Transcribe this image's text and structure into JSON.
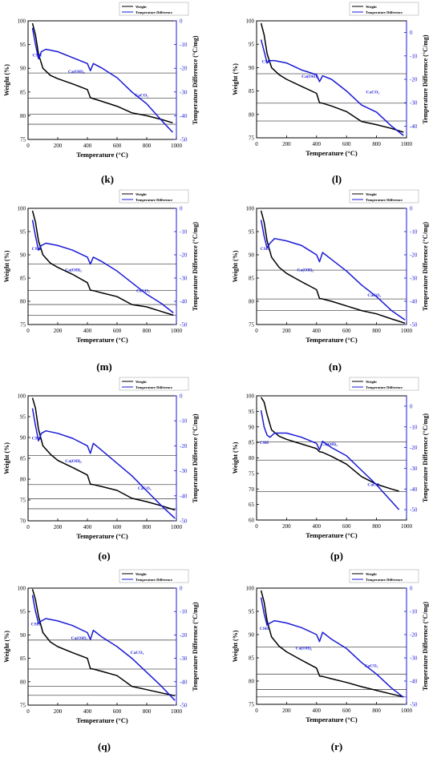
{
  "colors": {
    "weight": "#000000",
    "temp": "#1a1ad6",
    "axis_right": "#1a1ad6",
    "hline": "#555555"
  },
  "legend": {
    "weight": "Weight",
    "temp": "Temperature Difference"
  },
  "axes": {
    "xlabel": "Temperature (°C)",
    "ylabel_left": "Weight (%)",
    "ylabel_right": "Temperature Difference (°C/mg)"
  },
  "annotations": {
    "csh": "CSH",
    "caoh2": "Ca(OH)₂",
    "caco3": "CaCO₃"
  },
  "chart_data": [
    {
      "label": "(k)",
      "type": "line",
      "xlim": [
        0,
        1000
      ],
      "ylim_left": [
        75,
        100
      ],
      "ylim_right": [
        -50,
        0
      ],
      "xticks": [
        0,
        200,
        400,
        600,
        800,
        1000
      ],
      "yticks_left": [
        75,
        80,
        85,
        90,
        95,
        100
      ],
      "yticks_right": [
        0,
        -10,
        -20,
        -30,
        -40,
        -50
      ],
      "hlines": [
        89,
        83.7,
        80.3,
        78.2
      ],
      "series": [
        {
          "name": "Weight",
          "axis": "left",
          "x": [
            30,
            50,
            70,
            100,
            150,
            200,
            300,
            400,
            420,
            440,
            500,
            600,
            700,
            800,
            900,
            975
          ],
          "y": [
            99.5,
            97,
            93,
            90,
            88.5,
            87.8,
            86.7,
            85.5,
            83.8,
            83.6,
            83,
            82,
            80.6,
            80,
            79.2,
            78.5
          ]
        },
        {
          "name": "Temperature Difference",
          "axis": "right",
          "x": [
            30,
            50,
            70,
            90,
            120,
            200,
            300,
            400,
            420,
            440,
            500,
            600,
            700,
            800,
            900,
            975
          ],
          "y": [
            -3,
            -10,
            -16,
            -13,
            -12,
            -13,
            -15.5,
            -18,
            -21,
            -18,
            -20,
            -24,
            -30,
            -35,
            -42,
            -47
          ]
        }
      ],
      "notes": [
        {
          "text_key": "csh",
          "x": 30,
          "y": 92.5
        },
        {
          "text_key": "caoh2",
          "x": 270,
          "y": 89
        },
        {
          "text_key": "caco3",
          "x": 720,
          "y": 84
        }
      ]
    },
    {
      "label": "(l)",
      "type": "line",
      "xlim": [
        0,
        1000
      ],
      "ylim_left": [
        75,
        100
      ],
      "ylim_right": [
        -45,
        5
      ],
      "xticks": [
        0,
        200,
        400,
        600,
        800,
        1000
      ],
      "yticks_left": [
        75,
        80,
        85,
        90,
        95,
        100
      ],
      "yticks_right": [
        0,
        -10,
        -20,
        -30,
        -40
      ],
      "hlines": [
        88.7,
        82.4,
        78.6
      ],
      "series": [
        {
          "name": "Weight",
          "axis": "left",
          "x": [
            30,
            50,
            70,
            100,
            150,
            200,
            300,
            400,
            420,
            440,
            500,
            600,
            700,
            800,
            900,
            980
          ],
          "y": [
            99.5,
            97,
            93,
            90,
            88.5,
            87.5,
            86,
            84.5,
            82.5,
            82.4,
            81.8,
            80.6,
            78.5,
            77.8,
            77,
            76.2
          ]
        },
        {
          "name": "Temperature Difference",
          "axis": "right",
          "x": [
            30,
            50,
            70,
            90,
            120,
            200,
            300,
            400,
            420,
            440,
            500,
            600,
            700,
            800,
            900,
            980
          ],
          "y": [
            -3,
            -8,
            -13,
            -12,
            -12,
            -13,
            -16,
            -18,
            -21,
            -18.5,
            -20,
            -25,
            -31,
            -34,
            -40,
            -44
          ]
        }
      ],
      "notes": [
        {
          "text_key": "csh",
          "x": 35,
          "y": 91
        },
        {
          "text_key": "caoh2",
          "x": 300,
          "y": 87.8
        },
        {
          "text_key": "caco3",
          "x": 730,
          "y": 84.5
        }
      ]
    },
    {
      "label": "(m)",
      "type": "line",
      "xlim": [
        0,
        1000
      ],
      "ylim_left": [
        75,
        100
      ],
      "ylim_right": [
        -50,
        0
      ],
      "xticks": [
        0,
        200,
        400,
        600,
        800,
        1000
      ],
      "yticks_left": [
        75,
        80,
        85,
        90,
        95,
        100
      ],
      "yticks_right": [
        0,
        -10,
        -20,
        -30,
        -40,
        -50
      ],
      "hlines": [
        88,
        82.3,
        79.3,
        77
      ],
      "series": [
        {
          "name": "Weight",
          "axis": "left",
          "x": [
            30,
            50,
            70,
            100,
            150,
            200,
            300,
            400,
            420,
            440,
            500,
            600,
            700,
            800,
            900,
            980
          ],
          "y": [
            99.5,
            97,
            93,
            90,
            88.2,
            87.3,
            85.8,
            84,
            82.4,
            82.3,
            81.8,
            81,
            79.3,
            78.8,
            77.8,
            77
          ]
        },
        {
          "name": "Temperature Difference",
          "axis": "right",
          "x": [
            30,
            50,
            70,
            90,
            120,
            200,
            300,
            400,
            420,
            440,
            500,
            600,
            700,
            800,
            900,
            980
          ],
          "y": [
            -5,
            -12,
            -18,
            -16,
            -15,
            -16,
            -18,
            -21,
            -24,
            -21,
            -23,
            -27,
            -32,
            -37,
            -41,
            -45
          ]
        }
      ],
      "notes": [
        {
          "text_key": "csh",
          "x": 25,
          "y": 91
        },
        {
          "text_key": "caoh2",
          "x": 250,
          "y": 86.5
        },
        {
          "text_key": "caco3",
          "x": 730,
          "y": 82
        }
      ]
    },
    {
      "label": "(n)",
      "type": "line",
      "xlim": [
        0,
        1000
      ],
      "ylim_left": [
        75,
        100
      ],
      "ylim_right": [
        -50,
        0
      ],
      "xticks": [
        0,
        200,
        400,
        600,
        800,
        1000
      ],
      "yticks_left": [
        75,
        80,
        85,
        90,
        95,
        100
      ],
      "yticks_right": [
        0,
        -10,
        -20,
        -30,
        -40,
        -50
      ],
      "hlines": [
        86.7,
        80.5,
        78
      ],
      "series": [
        {
          "name": "Weight",
          "axis": "left",
          "x": [
            30,
            50,
            70,
            100,
            150,
            200,
            300,
            400,
            420,
            440,
            500,
            600,
            700,
            800,
            900,
            990
          ],
          "y": [
            99.5,
            97,
            93,
            89.5,
            87.3,
            86,
            84.2,
            82.5,
            80.6,
            80.5,
            80,
            79,
            78,
            77.3,
            76.2,
            75.3
          ]
        },
        {
          "name": "Temperature Difference",
          "axis": "right",
          "x": [
            30,
            50,
            70,
            90,
            120,
            200,
            300,
            400,
            420,
            440,
            500,
            600,
            700,
            800,
            900,
            990
          ],
          "y": [
            -5,
            -12,
            -17,
            -15,
            -13,
            -14,
            -16,
            -20,
            -23,
            -19,
            -22,
            -27,
            -33,
            -38,
            -44,
            -48
          ]
        }
      ],
      "notes": [
        {
          "text_key": "csh",
          "x": 25,
          "y": 91
        },
        {
          "text_key": "caoh2",
          "x": 270,
          "y": 86.5
        },
        {
          "text_key": "caco3",
          "x": 740,
          "y": 81
        }
      ]
    },
    {
      "label": "(o)",
      "type": "line",
      "xlim": [
        0,
        1000
      ],
      "ylim_left": [
        70,
        100
      ],
      "ylim_right": [
        -50,
        0
      ],
      "xticks": [
        0,
        200,
        400,
        600,
        800,
        1000
      ],
      "yticks_left": [
        70,
        75,
        80,
        85,
        90,
        95,
        100
      ],
      "yticks_right": [
        0,
        -10,
        -20,
        -30,
        -40,
        -50
      ],
      "hlines": [
        85.7,
        78.7,
        75.3,
        72.9
      ],
      "series": [
        {
          "name": "Weight",
          "axis": "left",
          "x": [
            30,
            50,
            70,
            100,
            150,
            200,
            300,
            400,
            420,
            440,
            500,
            600,
            700,
            800,
            900,
            990
          ],
          "y": [
            99.5,
            97,
            92,
            88,
            86,
            84.5,
            82.8,
            81,
            78.8,
            78.7,
            78.2,
            77.3,
            75.4,
            74.6,
            73.6,
            72.6
          ]
        },
        {
          "name": "Temperature Difference",
          "axis": "right",
          "x": [
            30,
            50,
            70,
            90,
            120,
            200,
            300,
            400,
            420,
            440,
            500,
            600,
            700,
            800,
            900,
            990
          ],
          "y": [
            -5,
            -12,
            -18,
            -15,
            -14,
            -15,
            -17,
            -20,
            -23,
            -19,
            -22,
            -27,
            -32,
            -38,
            -44,
            -49
          ]
        }
      ],
      "notes": [
        {
          "text_key": "csh",
          "x": 25,
          "y": 89.5
        },
        {
          "text_key": "caoh2",
          "x": 250,
          "y": 84
        },
        {
          "text_key": "caco3",
          "x": 740,
          "y": 77.5
        }
      ]
    },
    {
      "label": "(p)",
      "type": "line",
      "xlim": [
        0,
        1000
      ],
      "ylim_left": [
        60,
        100
      ],
      "ylim_right": [
        -55,
        5
      ],
      "xticks": [
        0,
        200,
        400,
        600,
        800,
        1000
      ],
      "yticks_left": [
        60,
        65,
        70,
        75,
        80,
        85,
        90,
        95,
        100
      ],
      "yticks_right": [
        0,
        -10,
        -20,
        -30,
        -40,
        -50
      ],
      "hlines": [
        85.2,
        79.3,
        69.2
      ],
      "series": [
        {
          "name": "Weight",
          "axis": "left",
          "x": [
            30,
            50,
            70,
            100,
            150,
            200,
            300,
            400,
            420,
            440,
            500,
            600,
            700,
            800,
            900,
            950
          ],
          "y": [
            99.5,
            98,
            94,
            89,
            87,
            86,
            84.5,
            83,
            82,
            81.8,
            80.5,
            78,
            74,
            71.5,
            70,
            69.3
          ]
        },
        {
          "name": "Temperature Difference",
          "axis": "right",
          "x": [
            30,
            50,
            70,
            90,
            120,
            200,
            300,
            400,
            420,
            440,
            500,
            600,
            700,
            800,
            900,
            950
          ],
          "y": [
            -2,
            -10,
            -14,
            -15,
            -13,
            -13,
            -15,
            -18,
            -21,
            -17,
            -20,
            -24,
            -31,
            -38,
            -46,
            -50
          ]
        }
      ],
      "notes": [
        {
          "text_key": "csh",
          "x": 20,
          "y": 84.5
        },
        {
          "text_key": "caoh2",
          "x": 430,
          "y": 84
        },
        {
          "text_key": "caco3",
          "x": 740,
          "y": 71
        }
      ]
    },
    {
      "label": "(q)",
      "type": "line",
      "xlim": [
        0,
        1000
      ],
      "ylim_left": [
        75,
        100
      ],
      "ylim_right": [
        -50,
        0
      ],
      "xticks": [
        0,
        200,
        400,
        600,
        800,
        1000
      ],
      "yticks_left": [
        75,
        80,
        85,
        90,
        95,
        100
      ],
      "yticks_right": [
        0,
        -10,
        -20,
        -30,
        -40,
        -50
      ],
      "hlines": [
        88.9,
        82.7,
        79,
        77.1
      ],
      "series": [
        {
          "name": "Weight",
          "axis": "left",
          "x": [
            30,
            50,
            70,
            100,
            150,
            200,
            300,
            400,
            420,
            440,
            500,
            600,
            700,
            800,
            900,
            990
          ],
          "y": [
            99.8,
            97.5,
            94,
            90.5,
            88.5,
            87.5,
            86.2,
            85,
            82.8,
            82.7,
            82.2,
            81.3,
            79,
            78.3,
            77.6,
            77
          ]
        },
        {
          "name": "Temperature Difference",
          "axis": "right",
          "x": [
            30,
            50,
            70,
            90,
            120,
            200,
            300,
            400,
            420,
            440,
            500,
            600,
            700,
            800,
            900,
            990
          ],
          "y": [
            -3,
            -10,
            -15,
            -14,
            -13,
            -14,
            -16,
            -19,
            -22,
            -18,
            -21,
            -25,
            -30,
            -36,
            -42,
            -48
          ]
        }
      ],
      "notes": [
        {
          "text_key": "csh",
          "x": 20,
          "y": 92
        },
        {
          "text_key": "caoh2",
          "x": 290,
          "y": 89
        },
        {
          "text_key": "caco3",
          "x": 690,
          "y": 86
        }
      ]
    },
    {
      "label": "(r)",
      "type": "line",
      "xlim": [
        0,
        1000
      ],
      "ylim_left": [
        75,
        100
      ],
      "ylim_right": [
        -50,
        0
      ],
      "xticks": [
        0,
        200,
        400,
        600,
        800,
        1000
      ],
      "yticks_left": [
        75,
        80,
        85,
        90,
        95,
        100
      ],
      "yticks_right": [
        0,
        -10,
        -20,
        -30,
        -40,
        -50
      ],
      "hlines": [
        87.3,
        81.5,
        78.2,
        76.6
      ],
      "series": [
        {
          "name": "Weight",
          "axis": "left",
          "x": [
            30,
            50,
            70,
            100,
            150,
            200,
            300,
            400,
            420,
            440,
            500,
            600,
            700,
            800,
            900,
            980
          ],
          "y": [
            99.5,
            97,
            93,
            89.5,
            87.5,
            86.3,
            84.5,
            82.8,
            81.1,
            81,
            80.5,
            79.7,
            78.8,
            78,
            77.2,
            76.6
          ]
        },
        {
          "name": "Temperature Difference",
          "axis": "right",
          "x": [
            30,
            50,
            70,
            90,
            120,
            200,
            300,
            400,
            420,
            440,
            500,
            600,
            700,
            800,
            900,
            980
          ],
          "y": [
            -4,
            -11,
            -16,
            -15,
            -14,
            -15,
            -17,
            -20,
            -23,
            -19,
            -22,
            -26,
            -32,
            -37,
            -43,
            -47
          ]
        }
      ],
      "notes": [
        {
          "text_key": "csh",
          "x": 20,
          "y": 91
        },
        {
          "text_key": "caoh2",
          "x": 260,
          "y": 86.8
        },
        {
          "text_key": "caco3",
          "x": 720,
          "y": 83
        }
      ]
    }
  ]
}
